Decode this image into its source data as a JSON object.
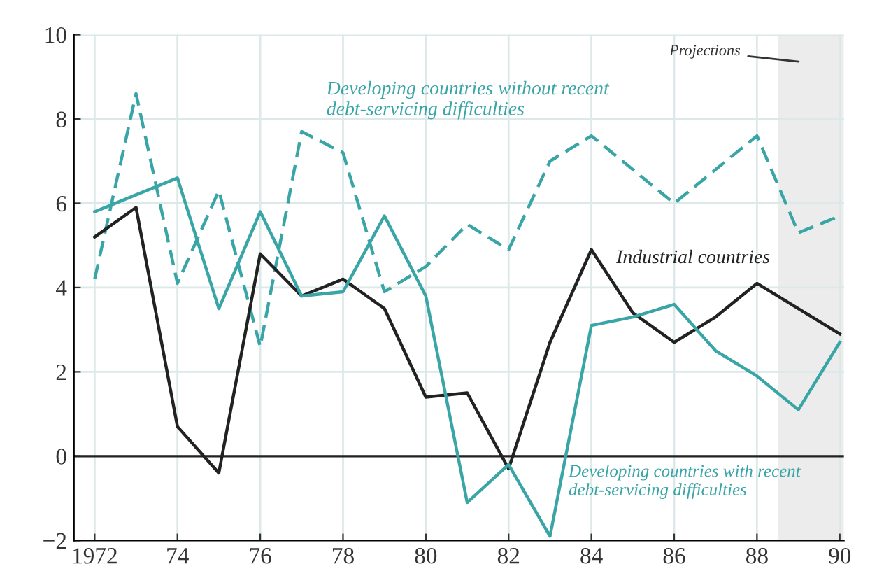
{
  "chart_data": {
    "type": "line",
    "x": [
      1972,
      1973,
      1974,
      1975,
      1976,
      1977,
      1978,
      1979,
      1980,
      1981,
      1982,
      1983,
      1984,
      1985,
      1986,
      1987,
      1988,
      1989,
      1990
    ],
    "series": [
      {
        "name": "Developing countries without recent debt-servicing difficulties",
        "color": "#3aa5a6",
        "line_style": "dashed",
        "values": [
          4.2,
          8.6,
          4.1,
          6.3,
          2.6,
          7.7,
          7.2,
          3.9,
          4.5,
          5.5,
          4.9,
          7.0,
          7.6,
          6.8,
          6.0,
          6.8,
          7.6,
          5.3,
          5.7
        ]
      },
      {
        "name": "Industrial countries",
        "color": "#222222",
        "line_style": "solid",
        "values": [
          5.2,
          5.9,
          0.7,
          -0.4,
          4.8,
          3.8,
          4.2,
          3.5,
          1.4,
          1.5,
          -0.3,
          2.7,
          4.9,
          3.4,
          2.7,
          3.3,
          4.1,
          3.5,
          2.9
        ]
      },
      {
        "name": "Developing countries with recent debt-servicing difficulties",
        "color": "#3aa5a6",
        "line_style": "solid",
        "values": [
          5.8,
          6.2,
          6.6,
          3.5,
          5.8,
          3.8,
          3.9,
          5.7,
          3.8,
          -1.1,
          -0.2,
          -1.9,
          3.1,
          3.3,
          3.6,
          2.5,
          1.9,
          1.1,
          2.7
        ]
      }
    ],
    "xlim": [
      1971.5,
      1990.1
    ],
    "ylim": [
      -2,
      10
    ],
    "xticks": [
      {
        "value": 1972,
        "label": "1972"
      },
      {
        "value": 1974,
        "label": "74"
      },
      {
        "value": 1976,
        "label": "76"
      },
      {
        "value": 1978,
        "label": "78"
      },
      {
        "value": 1980,
        "label": "80"
      },
      {
        "value": 1982,
        "label": "82"
      },
      {
        "value": 1984,
        "label": "84"
      },
      {
        "value": 1986,
        "label": "86"
      },
      {
        "value": 1988,
        "label": "88"
      },
      {
        "value": 1990,
        "label": "90"
      }
    ],
    "yticks": [
      {
        "value": -2,
        "label": "−2"
      },
      0,
      2,
      4,
      6,
      8,
      10
    ],
    "ref_lines": [
      {
        "axis": "y",
        "value": 0,
        "color": "#222222"
      }
    ],
    "bands": [
      {
        "axis": "x",
        "from": 1988.5,
        "to": 1990.1,
        "label": "Projections",
        "color": "#ececec"
      }
    ],
    "grid": true,
    "legend": false,
    "marker": "none"
  }
}
